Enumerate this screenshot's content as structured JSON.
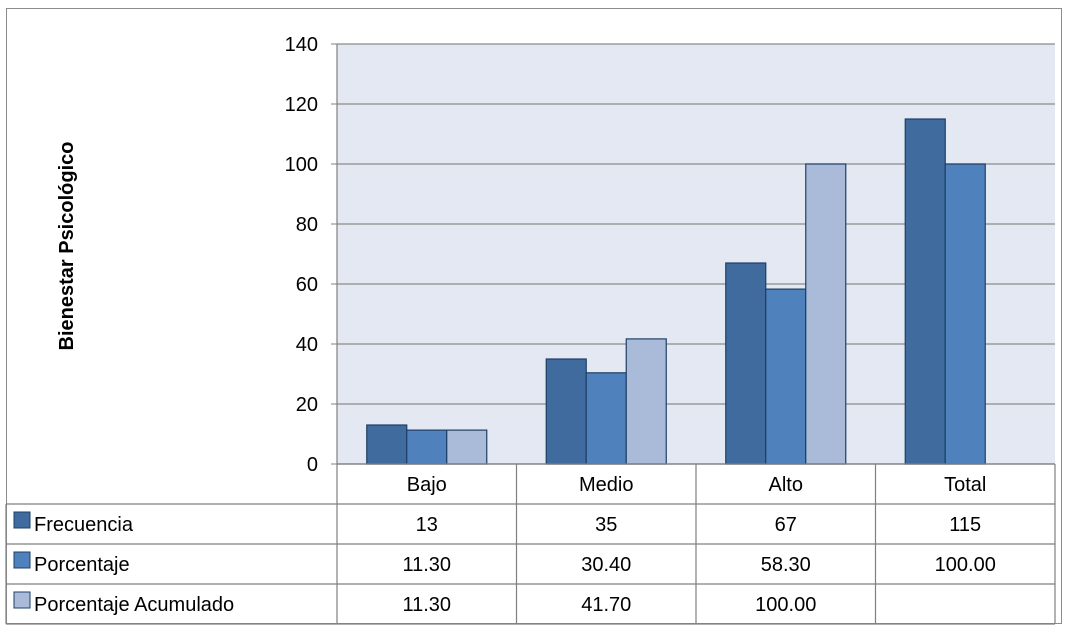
{
  "chart_data": {
    "type": "bar",
    "title": "",
    "xlabel": "",
    "ylabel": "Bienestar Psicológico",
    "ylim": [
      0,
      140
    ],
    "yticks": [
      0,
      20,
      40,
      60,
      80,
      100,
      120,
      140
    ],
    "grid": true,
    "legend": "data-table-left",
    "categories": [
      "Bajo",
      "Medio",
      "Alto",
      "Total"
    ],
    "series": [
      {
        "name": "Frecuencia",
        "color": "#3f6b9e",
        "values": [
          13,
          35,
          67,
          115
        ],
        "table_values": [
          "13",
          "35",
          "67",
          "115"
        ]
      },
      {
        "name": "Porcentaje",
        "color": "#4f81bd",
        "values": [
          11.3,
          30.4,
          58.3,
          100.0
        ],
        "table_values": [
          "11.30",
          "30.40",
          "58.30",
          "100.00"
        ]
      },
      {
        "name": "Porcentaje Acumulado",
        "color": "#a9bbd9",
        "values": [
          11.3,
          41.7,
          100.0,
          null
        ],
        "table_values": [
          "11.30",
          "41.70",
          "100.00",
          ""
        ]
      }
    ]
  }
}
